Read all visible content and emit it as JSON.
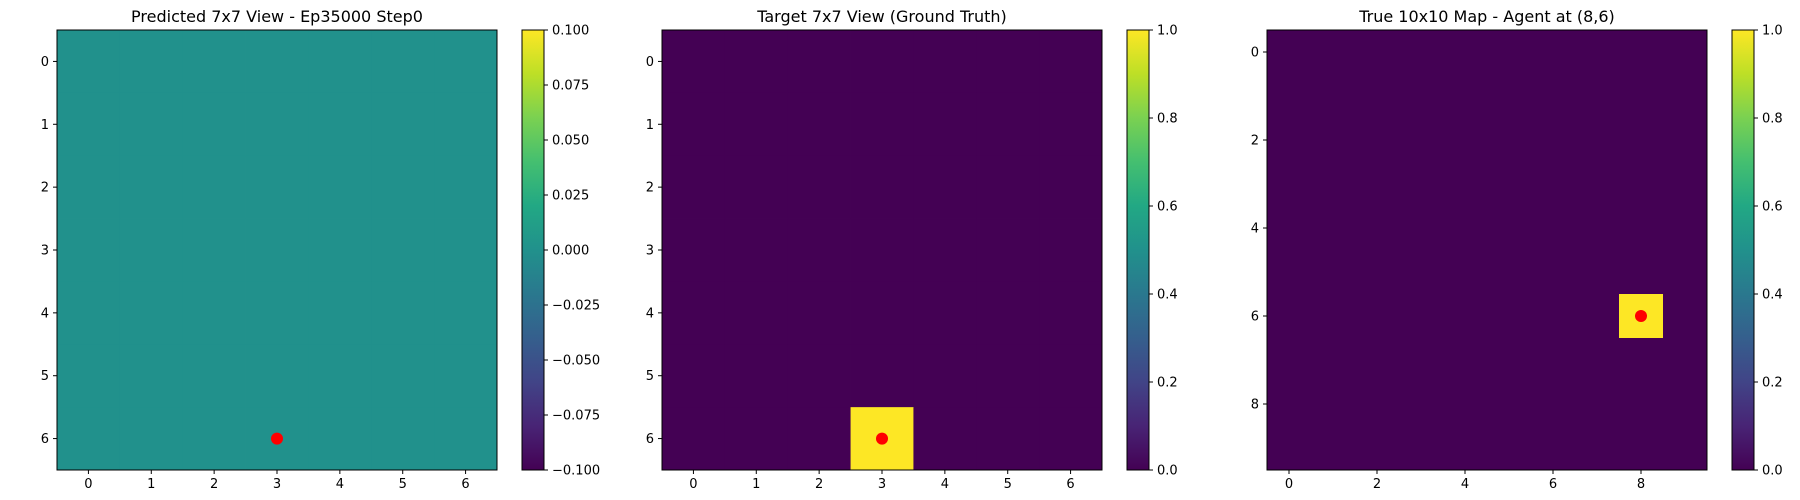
{
  "figure": {
    "background": "#ffffff",
    "colormap": "viridis",
    "marker_color": "#ff0000"
  },
  "chart_data": [
    {
      "type": "heatmap",
      "title": "Predicted 7x7 View - Ep35000 Step0",
      "grid": false,
      "rows": 7,
      "cols": 7,
      "xticks": [
        0,
        1,
        2,
        3,
        4,
        5,
        6
      ],
      "yticks": [
        0,
        1,
        2,
        3,
        4,
        5,
        6
      ],
      "xlim": [
        -0.5,
        6.5
      ],
      "ylim": [
        6.5,
        -0.5
      ],
      "values": [
        [
          0,
          0,
          0,
          0,
          0,
          0,
          0
        ],
        [
          0,
          0,
          0,
          0,
          0,
          0,
          0
        ],
        [
          0,
          0,
          0,
          0,
          0,
          0,
          0
        ],
        [
          0,
          0,
          0,
          0,
          0,
          0,
          0
        ],
        [
          0,
          0,
          0,
          0,
          0,
          0,
          0
        ],
        [
          0,
          0,
          0,
          0,
          0,
          0,
          0
        ],
        [
          0,
          0,
          0,
          0,
          0,
          0,
          0
        ]
      ],
      "vmin": -0.1,
      "vmax": 0.1,
      "colorbar_ticks": [
        "0.100",
        "0.075",
        "0.050",
        "0.025",
        "0.000",
        "−0.025",
        "−0.050",
        "−0.075",
        "−0.100"
      ],
      "marker": {
        "x": 3,
        "y": 6
      }
    },
    {
      "type": "heatmap",
      "title": "Target 7x7 View (Ground Truth)",
      "grid": false,
      "rows": 7,
      "cols": 7,
      "xticks": [
        0,
        1,
        2,
        3,
        4,
        5,
        6
      ],
      "yticks": [
        0,
        1,
        2,
        3,
        4,
        5,
        6
      ],
      "xlim": [
        -0.5,
        6.5
      ],
      "ylim": [
        6.5,
        -0.5
      ],
      "values": [
        [
          0,
          0,
          0,
          0,
          0,
          0,
          0
        ],
        [
          0,
          0,
          0,
          0,
          0,
          0,
          0
        ],
        [
          0,
          0,
          0,
          0,
          0,
          0,
          0
        ],
        [
          0,
          0,
          0,
          0,
          0,
          0,
          0
        ],
        [
          0,
          0,
          0,
          0,
          0,
          0,
          0
        ],
        [
          0,
          0,
          0,
          0,
          0,
          0,
          0
        ],
        [
          0,
          0,
          0,
          1,
          0,
          0,
          0
        ]
      ],
      "vmin": 0,
      "vmax": 1,
      "colorbar_ticks": [
        "1.0",
        "0.8",
        "0.6",
        "0.4",
        "0.2",
        "0.0"
      ],
      "marker": {
        "x": 3,
        "y": 6
      }
    },
    {
      "type": "heatmap",
      "title": "True 10x10 Map - Agent at (8,6)",
      "grid": false,
      "rows": 10,
      "cols": 10,
      "xticks": [
        0,
        2,
        4,
        6,
        8
      ],
      "yticks": [
        0,
        2,
        4,
        6,
        8
      ],
      "xlim": [
        -0.5,
        9.5
      ],
      "ylim": [
        9.5,
        -0.5
      ],
      "values": [
        [
          0,
          0,
          0,
          0,
          0,
          0,
          0,
          0,
          0,
          0
        ],
        [
          0,
          0,
          0,
          0,
          0,
          0,
          0,
          0,
          0,
          0
        ],
        [
          0,
          0,
          0,
          0,
          0,
          0,
          0,
          0,
          0,
          0
        ],
        [
          0,
          0,
          0,
          0,
          0,
          0,
          0,
          0,
          0,
          0
        ],
        [
          0,
          0,
          0,
          0,
          0,
          0,
          0,
          0,
          0,
          0
        ],
        [
          0,
          0,
          0,
          0,
          0,
          0,
          0,
          0,
          0,
          0
        ],
        [
          0,
          0,
          0,
          0,
          0,
          0,
          0,
          0,
          1,
          0
        ],
        [
          0,
          0,
          0,
          0,
          0,
          0,
          0,
          0,
          0,
          0
        ],
        [
          0,
          0,
          0,
          0,
          0,
          0,
          0,
          0,
          0,
          0
        ],
        [
          0,
          0,
          0,
          0,
          0,
          0,
          0,
          0,
          0,
          0
        ]
      ],
      "vmin": 0,
      "vmax": 1,
      "colorbar_ticks": [
        "1.0",
        "0.8",
        "0.6",
        "0.4",
        "0.2",
        "0.0"
      ],
      "marker": {
        "x": 8,
        "y": 6
      }
    }
  ]
}
